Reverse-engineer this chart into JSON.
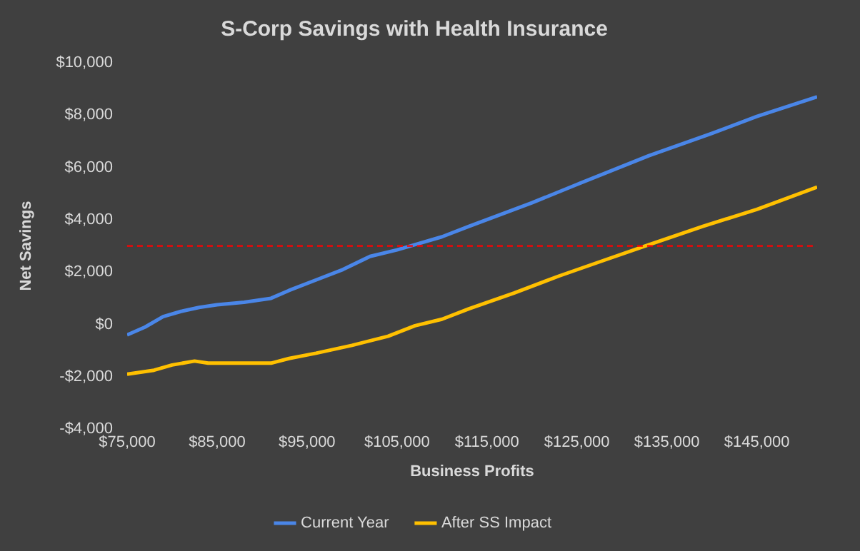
{
  "chart_data": {
    "type": "line",
    "title": "S-Corp Savings with Health Insurance",
    "xlabel": "Business Profits",
    "ylabel": "Net Savings",
    "xlim": [
      75000,
      151700
    ],
    "xticks": [
      {
        "value": 75000,
        "label": "$75,000"
      },
      {
        "value": 85000,
        "label": "$85,000"
      },
      {
        "value": 95000,
        "label": "$95,000"
      },
      {
        "value": 105000,
        "label": "$105,000"
      },
      {
        "value": 115000,
        "label": "$115,000"
      },
      {
        "value": 125000,
        "label": "$125,000"
      },
      {
        "value": 135000,
        "label": "$135,000"
      },
      {
        "value": 145000,
        "label": "$145,000"
      }
    ],
    "ylim": [
      -4000,
      10000
    ],
    "yticks": [
      {
        "value": -4000,
        "label": "-$4,000"
      },
      {
        "value": -2000,
        "label": "-$2,000"
      },
      {
        "value": 0,
        "label": "$0"
      },
      {
        "value": 2000,
        "label": "$2,000"
      },
      {
        "value": 4000,
        "label": "$4,000"
      },
      {
        "value": 6000,
        "label": "$6,000"
      },
      {
        "value": 8000,
        "label": "$8,000"
      },
      {
        "value": 10000,
        "label": "$10,000"
      }
    ],
    "series": [
      {
        "name": "Current Year",
        "color": "#4a86e8",
        "x": [
          75000,
          77000,
          79000,
          81000,
          83000,
          85000,
          88000,
          91000,
          93000,
          96000,
          99000,
          102000,
          105000,
          106500,
          110000,
          113000,
          120000,
          125000,
          133000,
          140000,
          145000,
          151700
        ],
        "values": [
          -400,
          -100,
          300,
          500,
          650,
          750,
          850,
          1000,
          1300,
          1700,
          2100,
          2600,
          2850,
          3000,
          3350,
          3750,
          4650,
          5350,
          6450,
          7300,
          7950,
          8700
        ]
      },
      {
        "name": "After SS Impact",
        "color": "#ffc000",
        "x": [
          75000,
          78000,
          80000,
          82500,
          84000,
          91000,
          93000,
          96000,
          100000,
          104000,
          107000,
          110000,
          113000,
          118000,
          123000,
          128000,
          133000,
          139000,
          145000,
          151700
        ],
        "values": [
          -1900,
          -1750,
          -1550,
          -1400,
          -1480,
          -1480,
          -1300,
          -1100,
          -800,
          -450,
          -50,
          200,
          600,
          1200,
          1850,
          2450,
          3050,
          3750,
          4400,
          5250
        ]
      }
    ],
    "ref_lines": [
      {
        "axis": "y",
        "value": 3000,
        "color": "#ff0000",
        "line_style": "dashed"
      }
    ],
    "grid": false,
    "legend": "bottom",
    "marker": "none",
    "line_style": "solid"
  }
}
